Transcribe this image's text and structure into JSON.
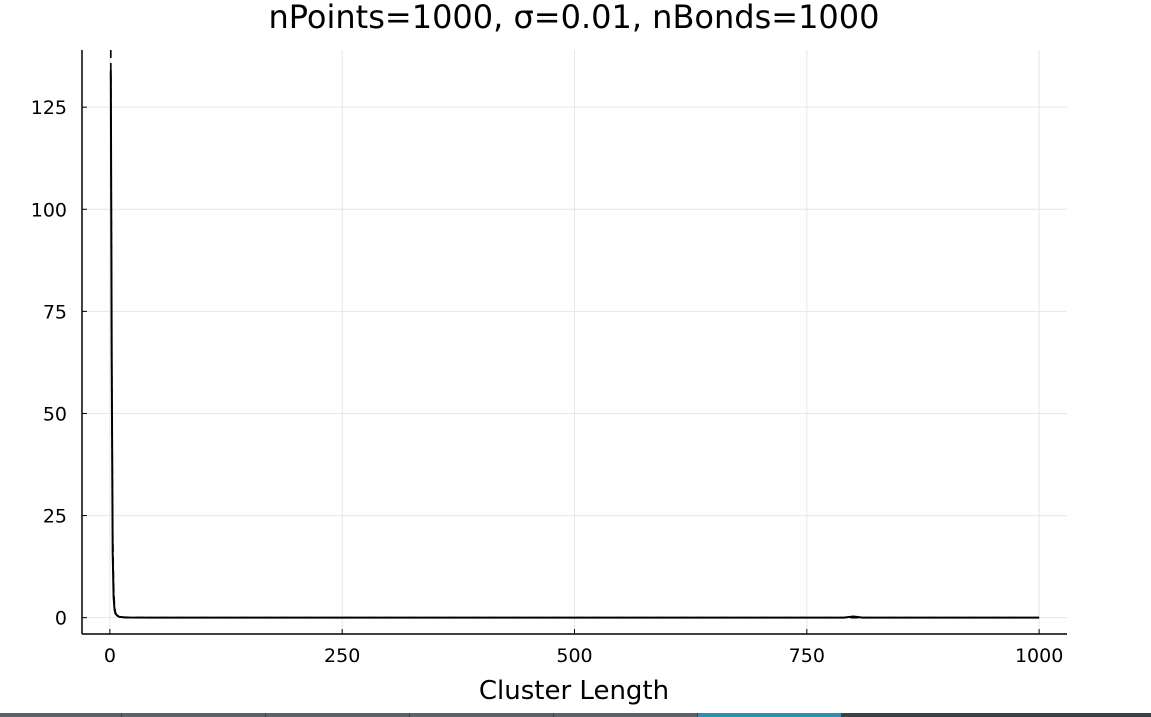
{
  "chart_data": {
    "type": "line",
    "title": "nPoints=1000, σ=0.01, nBonds=1000",
    "xlabel": "Cluster Length",
    "ylabel": "",
    "xlim": [
      -30,
      1030
    ],
    "ylim": [
      -4,
      139
    ],
    "grid": true,
    "legend": "none",
    "xticks": [
      0,
      250,
      500,
      750,
      1000
    ],
    "xtick_labels": [
      "0",
      "250",
      "500",
      "750",
      "1000"
    ],
    "yticks": [
      0,
      25,
      50,
      75,
      100,
      125
    ],
    "ytick_labels": [
      "0",
      "25",
      "50",
      "75",
      "100",
      "125"
    ],
    "series": [
      {
        "style": "solid",
        "color": "#000000",
        "x": [
          1,
          2,
          3,
          4,
          5,
          6,
          8,
          10,
          15,
          20,
          50,
          100,
          200,
          300,
          400,
          500,
          600,
          700,
          790,
          800,
          810,
          900,
          1000
        ],
        "y": [
          134,
          62,
          16,
          5,
          2,
          1,
          0.5,
          0.2,
          0.1,
          0.05,
          0.02,
          0.02,
          0.01,
          0.01,
          0.01,
          0.01,
          0.01,
          0.01,
          0.01,
          0.3,
          0.01,
          0.01,
          0.01
        ]
      },
      {
        "style": "dashed",
        "color": "#000000",
        "x": [
          1,
          1.5,
          2,
          3,
          4,
          5,
          6,
          8,
          10,
          15,
          20,
          50,
          100,
          300,
          500,
          750,
          1000
        ],
        "y": [
          139,
          100,
          62,
          22,
          8,
          3,
          1.2,
          0.4,
          0.15,
          0.05,
          0.02,
          0.005,
          0,
          0,
          0,
          0,
          0
        ]
      }
    ]
  },
  "taskbar": {
    "colors": [
      "#5a636b",
      "#5a636b",
      "#5a636b",
      "#5a636b",
      "#5a636b",
      "#2a8fb8",
      "#3a4148",
      "#3a4148"
    ]
  }
}
